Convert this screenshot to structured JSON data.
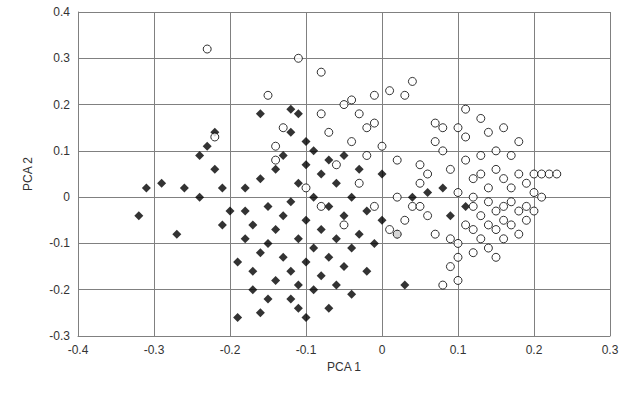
{
  "chart_data": {
    "type": "scatter",
    "x_label": "PCA 1",
    "y_label": "PCA 2",
    "xlim": [
      -0.4,
      0.3
    ],
    "xticks": [
      -0.4,
      -0.3,
      -0.2,
      -0.1,
      0,
      0.1,
      0.2,
      0.3
    ],
    "ylim": [
      -0.3,
      0.4
    ],
    "yticks": [
      -0.3,
      -0.2,
      -0.1,
      0,
      0.1,
      0.2,
      0.3,
      0.4
    ],
    "grid": true,
    "series": [
      {
        "marker": "diamond",
        "color": "#000000",
        "x": [
          -0.32,
          -0.31,
          -0.29,
          -0.27,
          -0.26,
          -0.24,
          -0.24,
          -0.23,
          -0.22,
          -0.22,
          -0.21,
          -0.21,
          -0.2,
          -0.19,
          -0.19,
          -0.18,
          -0.18,
          -0.18,
          -0.17,
          -0.17,
          -0.17,
          -0.16,
          -0.16,
          -0.16,
          -0.15,
          -0.15,
          -0.15,
          -0.14,
          -0.14,
          -0.14,
          -0.13,
          -0.13,
          -0.13,
          -0.12,
          -0.12,
          -0.12,
          -0.12,
          -0.11,
          -0.11,
          -0.11,
          -0.11,
          -0.11,
          -0.1,
          -0.1,
          -0.1,
          -0.1,
          -0.1,
          -0.09,
          -0.09,
          -0.09,
          -0.09,
          -0.08,
          -0.08,
          -0.08,
          -0.07,
          -0.07,
          -0.07,
          -0.07,
          -0.06,
          -0.06,
          -0.06,
          -0.05,
          -0.05,
          -0.05,
          -0.04,
          -0.04,
          -0.04,
          -0.03,
          -0.03,
          -0.02,
          -0.02,
          -0.01,
          0.0,
          0.0,
          0.02,
          0.03,
          0.04,
          0.06,
          0.08,
          0.09,
          0.11,
          -0.16,
          -0.12
        ],
        "values": [
          -0.04,
          0.02,
          0.03,
          -0.08,
          0.02,
          0.0,
          0.09,
          0.11,
          0.06,
          0.14,
          -0.06,
          0.02,
          -0.03,
          -0.26,
          -0.14,
          -0.09,
          -0.03,
          0.02,
          -0.2,
          -0.16,
          -0.06,
          -0.25,
          -0.12,
          0.04,
          -0.22,
          -0.1,
          -0.02,
          -0.18,
          -0.07,
          0.06,
          -0.13,
          -0.04,
          0.09,
          -0.22,
          -0.16,
          -0.01,
          0.14,
          -0.24,
          -0.19,
          -0.09,
          0.03,
          0.18,
          -0.26,
          -0.14,
          -0.05,
          0.07,
          0.12,
          -0.2,
          -0.11,
          0.0,
          0.1,
          -0.17,
          -0.07,
          0.05,
          -0.24,
          -0.13,
          -0.02,
          0.08,
          -0.19,
          -0.09,
          0.03,
          -0.15,
          -0.04,
          0.09,
          -0.21,
          -0.11,
          0.0,
          -0.08,
          0.06,
          -0.16,
          -0.03,
          -0.1,
          0.05,
          -0.05,
          -0.08,
          -0.19,
          0.0,
          0.01,
          0.02,
          -0.04,
          -0.02,
          0.18,
          0.19
        ]
      },
      {
        "marker": "circle-open",
        "color": "#000000",
        "x": [
          -0.23,
          -0.22,
          -0.11,
          -0.15,
          -0.14,
          -0.14,
          -0.13,
          -0.08,
          -0.08,
          -0.07,
          -0.05,
          -0.04,
          -0.03,
          -0.02,
          -0.01,
          0.01,
          0.03,
          0.04,
          -0.06,
          -0.04,
          -0.02,
          0.0,
          0.02,
          -0.1,
          -0.08,
          -0.05,
          -0.03,
          -0.01,
          0.01,
          0.02,
          0.03,
          0.04,
          0.05,
          0.06,
          0.07,
          0.07,
          0.08,
          0.08,
          0.09,
          0.09,
          0.09,
          0.1,
          0.1,
          0.1,
          0.1,
          0.11,
          0.11,
          0.11,
          0.12,
          0.12,
          0.12,
          0.12,
          0.13,
          0.13,
          0.13,
          0.13,
          0.14,
          0.14,
          0.14,
          0.14,
          0.15,
          0.15,
          0.15,
          0.15,
          0.15,
          0.16,
          0.16,
          0.16,
          0.16,
          0.17,
          0.17,
          0.17,
          0.17,
          0.18,
          0.18,
          0.18,
          0.18,
          0.19,
          0.19,
          0.19,
          0.2,
          0.2,
          0.2,
          0.21,
          0.21,
          0.22,
          0.23,
          0.08,
          0.07,
          0.06,
          0.05,
          0.11,
          0.02,
          -0.01,
          0.05,
          0.1,
          0.12,
          0.13,
          0.16,
          0.14
        ],
        "values": [
          0.32,
          0.13,
          0.3,
          0.22,
          0.11,
          0.08,
          0.15,
          0.27,
          0.18,
          0.14,
          0.2,
          0.21,
          0.18,
          0.15,
          0.22,
          0.23,
          0.22,
          0.25,
          0.07,
          0.12,
          0.09,
          0.11,
          0.08,
          0.02,
          -0.02,
          -0.06,
          0.03,
          -0.02,
          -0.07,
          -0.08,
          -0.05,
          -0.02,
          0.03,
          0.05,
          0.12,
          0.16,
          0.15,
          0.1,
          0.06,
          -0.09,
          -0.15,
          -0.13,
          -0.18,
          0.01,
          0.15,
          0.19,
          0.13,
          0.08,
          0.04,
          -0.02,
          -0.07,
          -0.12,
          0.17,
          0.09,
          -0.04,
          -0.09,
          0.14,
          0.02,
          -0.01,
          -0.11,
          0.1,
          0.06,
          -0.03,
          -0.07,
          -0.13,
          0.15,
          0.04,
          -0.05,
          -0.09,
          0.09,
          0.02,
          -0.01,
          -0.06,
          0.12,
          0.05,
          -0.03,
          -0.08,
          0.03,
          -0.02,
          -0.05,
          0.05,
          0.01,
          -0.03,
          0.05,
          0.0,
          0.05,
          0.05,
          -0.19,
          -0.08,
          -0.04,
          0.07,
          -0.06,
          0.0,
          0.16,
          -0.02,
          -0.1,
          0.0,
          0.05,
          -0.02,
          -0.06
        ]
      }
    ]
  }
}
